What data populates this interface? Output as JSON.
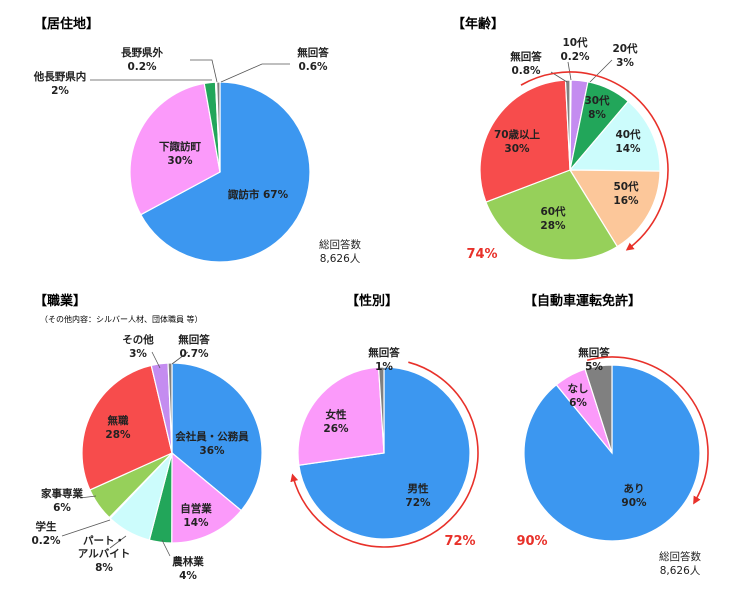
{
  "totals": {
    "label": "総回答数",
    "value": "8,626人"
  },
  "chart_data": [
    {
      "type": "pie",
      "title": "【居住地】",
      "slices": [
        {
          "label": "諏訪市",
          "pct_text": "67%",
          "value": 67,
          "color": "#3c97f0"
        },
        {
          "label": "下諏訪町",
          "pct_text": "30%",
          "value": 30,
          "color": "#fb9afa"
        },
        {
          "label": "他長野県内",
          "pct_text": "2%",
          "value": 2,
          "color": "#22a65a"
        },
        {
          "label": "長野県外",
          "pct_text": "0.2%",
          "value": 0.2,
          "color": "#c0c0c0"
        },
        {
          "label": "無回答",
          "pct_text": "0.6%",
          "value": 0.6,
          "color": "#808080"
        }
      ]
    },
    {
      "type": "pie",
      "title": "【年齢】",
      "slices": [
        {
          "label": "10代",
          "pct_text": "0.2%",
          "value": 0.2,
          "color": "#ffe24d"
        },
        {
          "label": "20代",
          "pct_text": "3%",
          "value": 3,
          "color": "#c48cf0"
        },
        {
          "label": "30代",
          "pct_text": "8%",
          "value": 8,
          "color": "#22a65a"
        },
        {
          "label": "40代",
          "pct_text": "14%",
          "value": 14,
          "color": "#ccfcfc"
        },
        {
          "label": "50代",
          "pct_text": "16%",
          "value": 16,
          "color": "#fcc79a"
        },
        {
          "label": "60代",
          "pct_text": "28%",
          "value": 28,
          "color": "#96d05a"
        },
        {
          "label": "70歳以上",
          "pct_text": "30%",
          "value": 30,
          "color": "#f74c4c"
        },
        {
          "label": "無回答",
          "pct_text": "0.8%",
          "value": 0.8,
          "color": "#808080"
        }
      ],
      "annotation": "74%"
    },
    {
      "type": "pie",
      "title": "【職業】",
      "note": "（その他内容：シルバー人材、団体職員 等）",
      "slices": [
        {
          "label": "会社員・公務員",
          "pct_text": "36%",
          "value": 36,
          "color": "#3c97f0"
        },
        {
          "label": "自営業",
          "pct_text": "14%",
          "value": 14,
          "color": "#fb9afa"
        },
        {
          "label": "農林業",
          "pct_text": "4%",
          "value": 4,
          "color": "#22a65a"
        },
        {
          "label": "パート・アルバイト",
          "pct_text": "8%",
          "value": 8,
          "color": "#ccfcfc"
        },
        {
          "label": "学生",
          "pct_text": "0.2%",
          "value": 0.2,
          "color": "#ffe24d"
        },
        {
          "label": "家事専業",
          "pct_text": "6%",
          "value": 6,
          "color": "#96d05a"
        },
        {
          "label": "無職",
          "pct_text": "28%",
          "value": 28,
          "color": "#f74c4c"
        },
        {
          "label": "その他",
          "pct_text": "3%",
          "value": 3,
          "color": "#c48cf0"
        },
        {
          "label": "無回答",
          "pct_text": "0.7%",
          "value": 0.7,
          "color": "#808080"
        }
      ]
    },
    {
      "type": "pie",
      "title": "【性別】",
      "slices": [
        {
          "label": "男性",
          "pct_text": "72%",
          "value": 72,
          "color": "#3c97f0"
        },
        {
          "label": "女性",
          "pct_text": "26%",
          "value": 26,
          "color": "#fb9afa"
        },
        {
          "label": "無回答",
          "pct_text": "1%",
          "value": 1,
          "color": "#808080"
        }
      ],
      "annotation": "72%"
    },
    {
      "type": "pie",
      "title": "【自動車運転免許】",
      "slices": [
        {
          "label": "あり",
          "pct_text": "90%",
          "value": 90,
          "color": "#3c97f0"
        },
        {
          "label": "なし",
          "pct_text": "6%",
          "value": 6,
          "color": "#fb9afa"
        },
        {
          "label": "無回答",
          "pct_text": "5%",
          "value": 5,
          "color": "#808080"
        }
      ],
      "annotation": "90%"
    }
  ]
}
